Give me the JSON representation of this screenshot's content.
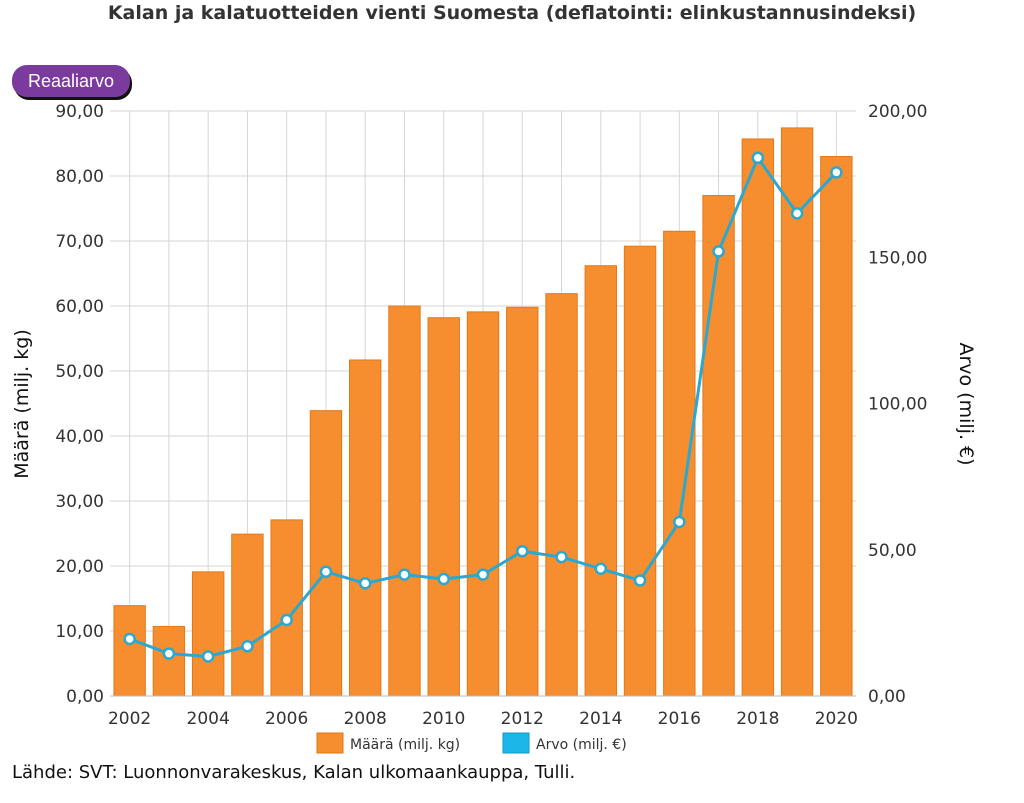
{
  "title": "Kalan ja kalatuotteiden vienti Suomesta (deflatointi: elinkustannusindeksi)",
  "mode_button_label": "Reaaliarvo",
  "source": "Lähde: SVT: Luonnonvarakeskus, Kalan ulkomaankauppa, Tulli.",
  "colors": {
    "bar": "#f68d2e",
    "bar_edge": "#e07a1c",
    "line": "#2aa8d0",
    "point_fill": "#ffffff",
    "grid": "#d6d6d6",
    "button": "#7b3a9e",
    "legend_line_swatch": "#1cb7e8"
  },
  "chart_data": {
    "type": "bar+line",
    "title": "Kalan ja kalatuotteiden vienti Suomesta (deflatointi: elinkustannusindeksi)",
    "x": [
      2002,
      2003,
      2004,
      2005,
      2006,
      2007,
      2008,
      2009,
      2010,
      2011,
      2012,
      2013,
      2014,
      2015,
      2016,
      2017,
      2018,
      2019,
      2020
    ],
    "x_tick_labels": [
      "2002",
      "2004",
      "2006",
      "2008",
      "2010",
      "2012",
      "2014",
      "2016",
      "2018",
      "2020"
    ],
    "ylabel_left": "Määrä (milj. kg)",
    "ylabel_right": "Arvo (milj. €)",
    "ylim_left": [
      0,
      90
    ],
    "ylim_right": [
      0,
      200
    ],
    "y_ticks_left": [
      "0,00",
      "10,00",
      "20,00",
      "30,00",
      "40,00",
      "50,00",
      "60,00",
      "70,00",
      "80,00",
      "90,00"
    ],
    "y_ticks_right": [
      "0,00",
      "50,00",
      "100,00",
      "150,00",
      "200,00"
    ],
    "grid": true,
    "legend_position": "bottom",
    "series": [
      {
        "name": "Määrä (milj. kg)",
        "type": "bar",
        "axis": "left",
        "values": [
          13.9,
          10.7,
          19.1,
          24.9,
          27.1,
          43.9,
          51.7,
          60.0,
          58.2,
          59.1,
          59.8,
          61.9,
          66.2,
          69.2,
          71.5,
          77.0,
          85.7,
          87.4,
          83.0
        ]
      },
      {
        "name": "Arvo (milj. €)",
        "type": "line",
        "axis": "right",
        "values": [
          19.5,
          14.5,
          13.5,
          17.0,
          26.0,
          42.5,
          38.5,
          41.5,
          40.0,
          41.5,
          49.5,
          47.5,
          43.5,
          39.5,
          59.5,
          152.0,
          184.0,
          165.0,
          179.0
        ]
      }
    ]
  }
}
